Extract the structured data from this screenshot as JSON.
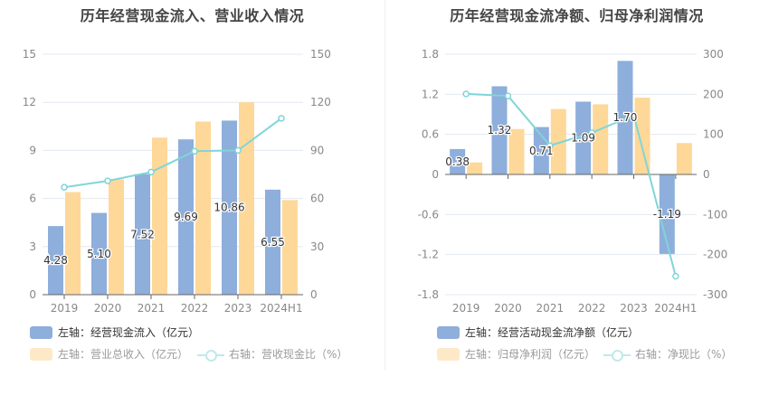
{
  "chart_data": [
    {
      "type": "bar",
      "title": "历年经营现金流入、营业收入情况",
      "categories": [
        "2019",
        "2020",
        "2021",
        "2022",
        "2023",
        "2024H1"
      ],
      "left_axis": {
        "ylim": [
          0,
          15
        ],
        "ticks": [
          "0",
          "3",
          "6",
          "9",
          "12",
          "15"
        ]
      },
      "right_axis": {
        "ylim": [
          0,
          150
        ],
        "ticks": [
          "0",
          "30",
          "60",
          "90",
          "120",
          "150"
        ]
      },
      "grid": true,
      "legend_position": "bottom-left",
      "series": [
        {
          "name": "左轴：经营现金流入（亿元）",
          "type": "bar",
          "axis": "left",
          "color": "#8eaedb",
          "values": [
            4.28,
            5.1,
            7.52,
            9.69,
            10.86,
            6.55
          ],
          "labels": [
            "4.28",
            "5.10",
            "7.52",
            "9.69",
            "10.86",
            "6.55"
          ]
        },
        {
          "name": "左轴：营业总收入（亿元）",
          "type": "bar",
          "axis": "left",
          "color": "#fed899",
          "values": [
            6.4,
            7.2,
            9.8,
            10.8,
            12.0,
            5.9
          ]
        },
        {
          "name": "右轴：营收现金比（%）",
          "type": "line",
          "axis": "right",
          "color": "#7fd5d8",
          "values": [
            67,
            71,
            76.5,
            89.5,
            90,
            110
          ]
        }
      ]
    },
    {
      "type": "bar",
      "title": "历年经营现金流净额、归母净利润情况",
      "categories": [
        "2019",
        "2020",
        "2021",
        "2022",
        "2023",
        "2024H1"
      ],
      "left_axis": {
        "ylim": [
          -1.8,
          1.8
        ],
        "ticks": [
          "-1.8",
          "-1.2",
          "-0.6",
          "0",
          "0.6",
          "1.2",
          "1.8"
        ]
      },
      "right_axis": {
        "ylim": [
          -300,
          300
        ],
        "ticks": [
          "-300",
          "-200",
          "-100",
          "0",
          "100",
          "200",
          "300"
        ]
      },
      "grid": true,
      "legend_position": "bottom-left",
      "series": [
        {
          "name": "左轴：经营活动现金流净额（亿元）",
          "type": "bar",
          "axis": "left",
          "color": "#8eaedb",
          "values": [
            0.38,
            1.32,
            0.71,
            1.09,
            1.7,
            -1.19
          ],
          "labels": [
            "0.38",
            "1.32",
            "0.71",
            "1.09",
            "1.70",
            "-1.19"
          ]
        },
        {
          "name": "左轴：归母净利润（亿元）",
          "type": "bar",
          "axis": "left",
          "color": "#fed899",
          "values": [
            0.18,
            0.68,
            0.98,
            1.05,
            1.15,
            0.47
          ]
        },
        {
          "name": "右轴：净现比（%）",
          "type": "line",
          "axis": "right",
          "color": "#7fd5d8",
          "values": [
            201,
            196,
            72,
            104,
            148,
            -254
          ]
        }
      ]
    }
  ],
  "panels": [
    {
      "title": "历年经营现金流入、营业收入情况",
      "legend": [
        {
          "label": "左轴：经营现金流入（亿元）",
          "active": true
        },
        {
          "label": "左轴：营业总收入（亿元）",
          "active": false
        },
        {
          "label": "右轴：营收现金比（%）",
          "active": false
        }
      ]
    },
    {
      "title": "历年经营现金流净额、归母净利润情况",
      "legend": [
        {
          "label": "左轴：经营活动现金流净额（亿元）",
          "active": true
        },
        {
          "label": "左轴：归母净利润（亿元）",
          "active": false
        },
        {
          "label": "右轴：净现比（%）",
          "active": false
        }
      ]
    }
  ]
}
